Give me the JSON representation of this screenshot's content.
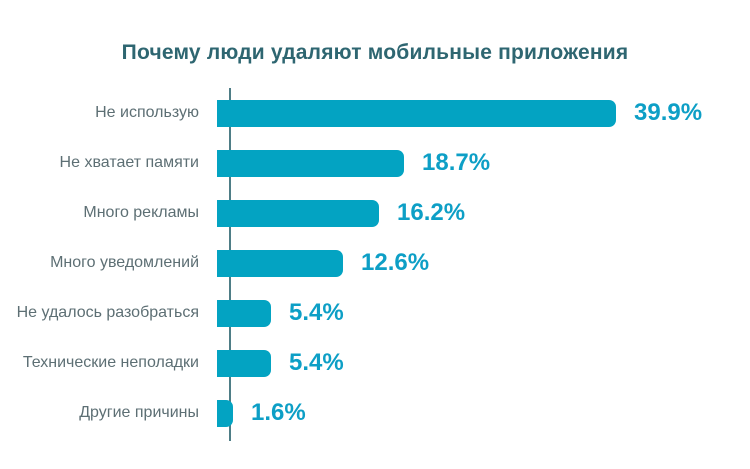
{
  "title": "Почему люди удаляют мобильные приложения",
  "chart_data": {
    "type": "bar",
    "orientation": "horizontal",
    "title": "Почему люди удаляют мобильные приложения",
    "categories": [
      "Не использую",
      "Не хватает памяти",
      "Много рекламы",
      "Много уведомлений",
      "Не удалось разобраться",
      "Технические неполадки",
      "Другие причины"
    ],
    "values": [
      39.9,
      18.7,
      16.2,
      12.6,
      5.4,
      5.4,
      1.6
    ],
    "display_values": [
      "39.9%",
      "18.7%",
      "16.2%",
      "12.6%",
      "5.4%",
      "5.4%",
      "1.6%"
    ],
    "xlabel": "",
    "ylabel": "",
    "xlim": [
      0,
      40
    ],
    "grid": false,
    "legend": "none",
    "value_labels": "outside-end",
    "colors": {
      "bar": "#03a3c2",
      "value_label": "#0d9fc6",
      "category_label": "#5d6f74",
      "title": "#2e6671",
      "axis_line": "#4e7d86",
      "background": "#ffffff"
    }
  }
}
